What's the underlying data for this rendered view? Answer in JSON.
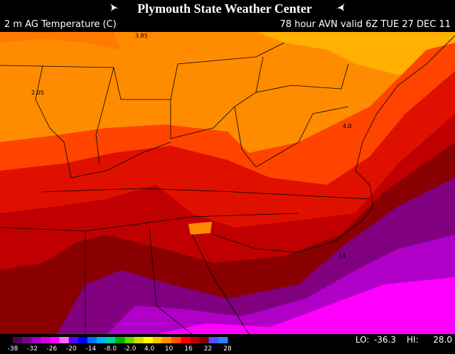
{
  "header": {
    "title": "Plymouth State Weather Center",
    "field": "2 m AG Temperature (C)",
    "valid": "78 hour AVN valid 6Z TUE 27 DEC 11"
  },
  "map": {
    "contour_labels": [
      "3.85",
      "2.05",
      "4.0",
      "14"
    ]
  },
  "colorbar": {
    "colors": [
      "#500050",
      "#7a0090",
      "#a000c0",
      "#d000e0",
      "#ff00ff",
      "#ff70ff",
      "#6000ff",
      "#0000ff",
      "#0070ff",
      "#00b0ff",
      "#00d0a0",
      "#00b000",
      "#70d000",
      "#d0e000",
      "#ffff00",
      "#ffc000",
      "#ff9000",
      "#ff5000",
      "#ff0000",
      "#c00000",
      "#800000",
      "#5050ff",
      "#3080ff"
    ],
    "ticks": [
      "-38",
      "-32",
      "-26",
      "-20",
      "-14",
      "-8.0",
      "-2.0",
      "4.0",
      "10",
      "16",
      "22",
      "28"
    ]
  },
  "stats": {
    "lo_label": "LO:",
    "lo": "-36.3",
    "hi_label": "HI:",
    "hi": "28.0"
  }
}
